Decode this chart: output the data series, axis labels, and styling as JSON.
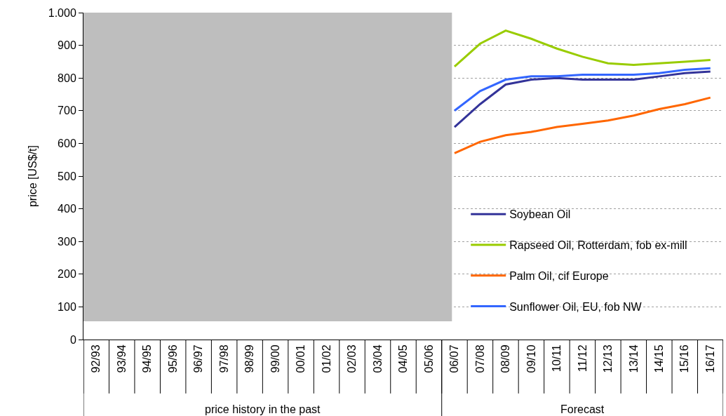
{
  "chart_data": {
    "type": "line",
    "ylabel": "price [US$/t]",
    "categories": [
      "92/93",
      "93/94",
      "94/95",
      "95/96",
      "96/97",
      "97/98",
      "98/99",
      "99/00",
      "00/01",
      "01/02",
      "02/03",
      "03/04",
      "04/05",
      "05/06",
      "06/07",
      "07/08",
      "08/09",
      "09/10",
      "10/11",
      "11/12",
      "12/13",
      "13/14",
      "14/15",
      "15/16",
      "16/17"
    ],
    "series": [
      {
        "name": "Soybean Oil",
        "color": "#333399",
        "values": [
          null,
          null,
          null,
          null,
          null,
          null,
          null,
          null,
          null,
          null,
          null,
          null,
          null,
          null,
          650,
          720,
          780,
          795,
          800,
          795,
          795,
          795,
          805,
          815,
          820
        ]
      },
      {
        "name": "Rapseed Oil, Rotterdam, fob ex-mill",
        "color": "#99cc00",
        "values": [
          null,
          null,
          null,
          null,
          null,
          null,
          null,
          null,
          null,
          null,
          null,
          null,
          null,
          null,
          835,
          905,
          945,
          920,
          890,
          865,
          845,
          840,
          845,
          850,
          855
        ]
      },
      {
        "name": "Palm Oil, cif Europe",
        "color": "#ff6600",
        "values": [
          null,
          null,
          null,
          null,
          null,
          null,
          null,
          null,
          null,
          null,
          null,
          null,
          null,
          null,
          570,
          605,
          625,
          635,
          650,
          660,
          670,
          685,
          705,
          720,
          740
        ]
      },
      {
        "name": "Sunflower Oil, EU, fob NW",
        "color": "#3366ff",
        "values": [
          null,
          null,
          null,
          null,
          null,
          null,
          null,
          null,
          null,
          null,
          null,
          null,
          null,
          null,
          700,
          760,
          795,
          805,
          805,
          810,
          810,
          810,
          815,
          825,
          830
        ]
      }
    ],
    "ylim": [
      0,
      1000
    ],
    "yticks": [
      0,
      100,
      200,
      300,
      400,
      500,
      600,
      700,
      800,
      900,
      {
        "value": 1000,
        "label": "1.000"
      }
    ],
    "grid": "y",
    "legend": "right",
    "marker": "none",
    "line_style": "solid",
    "annotations": [
      "price history in the past",
      "Forecast"
    ]
  }
}
